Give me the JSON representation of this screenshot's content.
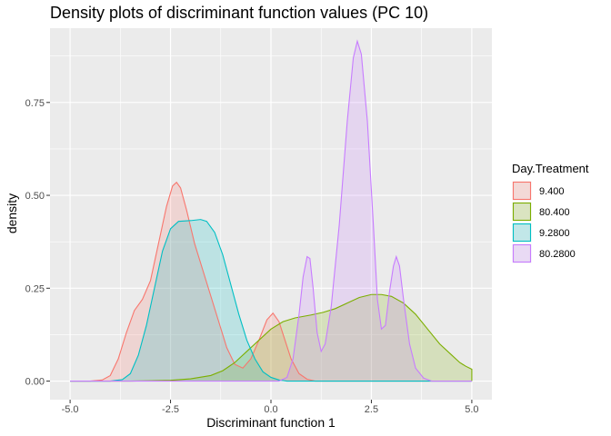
{
  "chart_data": {
    "type": "area",
    "title": "Density plots of discriminant function values (PC 10)",
    "xlabel": "Discriminant function 1",
    "ylabel": "density",
    "xlim": [
      -5.5,
      5.5
    ],
    "ylim": [
      -0.05,
      0.95
    ],
    "x_ticks": [
      -5.0,
      -2.5,
      0.0,
      2.5,
      5.0
    ],
    "x_tick_labels": [
      "-5.0",
      "-2.5",
      "0.0",
      "2.5",
      "5.0"
    ],
    "y_ticks": [
      0.0,
      0.25,
      0.5,
      0.75
    ],
    "y_tick_labels": [
      "0.00",
      "0.25",
      "0.50",
      "0.75"
    ],
    "grid": true,
    "legend": {
      "title": "Day.Treatment",
      "position": "right"
    },
    "series": [
      {
        "name": "9.400",
        "color": "#F8766D",
        "points": [
          [
            -5.0,
            0
          ],
          [
            -4.5,
            0
          ],
          [
            -4.2,
            0.003
          ],
          [
            -4.0,
            0.015
          ],
          [
            -3.8,
            0.06
          ],
          [
            -3.6,
            0.13
          ],
          [
            -3.4,
            0.19
          ],
          [
            -3.2,
            0.22
          ],
          [
            -3.0,
            0.27
          ],
          [
            -2.8,
            0.37
          ],
          [
            -2.6,
            0.47
          ],
          [
            -2.45,
            0.525
          ],
          [
            -2.35,
            0.535
          ],
          [
            -2.25,
            0.52
          ],
          [
            -2.1,
            0.46
          ],
          [
            -1.9,
            0.37
          ],
          [
            -1.7,
            0.3
          ],
          [
            -1.5,
            0.23
          ],
          [
            -1.3,
            0.16
          ],
          [
            -1.1,
            0.09
          ],
          [
            -0.9,
            0.045
          ],
          [
            -0.7,
            0.035
          ],
          [
            -0.5,
            0.06
          ],
          [
            -0.3,
            0.11
          ],
          [
            -0.1,
            0.165
          ],
          [
            0.05,
            0.183
          ],
          [
            0.2,
            0.16
          ],
          [
            0.35,
            0.11
          ],
          [
            0.5,
            0.06
          ],
          [
            0.7,
            0.02
          ],
          [
            0.9,
            0.005
          ],
          [
            1.1,
            0
          ],
          [
            5.0,
            0
          ]
        ]
      },
      {
        "name": "80.400",
        "color": "#7CAE00",
        "points": [
          [
            -5.0,
            0
          ],
          [
            -3.5,
            0
          ],
          [
            -3.0,
            0.001
          ],
          [
            -2.5,
            0.002
          ],
          [
            -2.0,
            0.006
          ],
          [
            -1.5,
            0.015
          ],
          [
            -1.2,
            0.028
          ],
          [
            -0.9,
            0.05
          ],
          [
            -0.6,
            0.08
          ],
          [
            -0.3,
            0.11
          ],
          [
            0.0,
            0.14
          ],
          [
            0.3,
            0.16
          ],
          [
            0.6,
            0.17
          ],
          [
            1.0,
            0.178
          ],
          [
            1.3,
            0.185
          ],
          [
            1.6,
            0.195
          ],
          [
            1.9,
            0.21
          ],
          [
            2.2,
            0.225
          ],
          [
            2.5,
            0.233
          ],
          [
            2.75,
            0.233
          ],
          [
            3.0,
            0.228
          ],
          [
            3.3,
            0.21
          ],
          [
            3.6,
            0.18
          ],
          [
            3.9,
            0.14
          ],
          [
            4.2,
            0.1
          ],
          [
            4.5,
            0.07
          ],
          [
            4.7,
            0.05
          ],
          [
            4.85,
            0.04
          ],
          [
            5.0,
            0.032
          ]
        ]
      },
      {
        "name": "9.2800",
        "color": "#00BFC4",
        "points": [
          [
            -5.0,
            0
          ],
          [
            -4.0,
            0
          ],
          [
            -3.7,
            0.004
          ],
          [
            -3.5,
            0.02
          ],
          [
            -3.3,
            0.07
          ],
          [
            -3.1,
            0.15
          ],
          [
            -2.9,
            0.25
          ],
          [
            -2.7,
            0.35
          ],
          [
            -2.5,
            0.41
          ],
          [
            -2.3,
            0.43
          ],
          [
            -2.0,
            0.432
          ],
          [
            -1.75,
            0.435
          ],
          [
            -1.6,
            0.43
          ],
          [
            -1.4,
            0.4
          ],
          [
            -1.2,
            0.34
          ],
          [
            -1.0,
            0.26
          ],
          [
            -0.8,
            0.18
          ],
          [
            -0.6,
            0.11
          ],
          [
            -0.4,
            0.06
          ],
          [
            -0.2,
            0.025
          ],
          [
            0.0,
            0.01
          ],
          [
            0.2,
            0.003
          ],
          [
            0.4,
            0
          ],
          [
            5.0,
            0
          ]
        ]
      },
      {
        "name": "80.2800",
        "color": "#C77CFF",
        "points": [
          [
            -5.0,
            0
          ],
          [
            0.2,
            0
          ],
          [
            0.4,
            0.01
          ],
          [
            0.55,
            0.06
          ],
          [
            0.7,
            0.18
          ],
          [
            0.8,
            0.28
          ],
          [
            0.9,
            0.335
          ],
          [
            0.97,
            0.33
          ],
          [
            1.05,
            0.25
          ],
          [
            1.15,
            0.13
          ],
          [
            1.25,
            0.08
          ],
          [
            1.35,
            0.1
          ],
          [
            1.5,
            0.2
          ],
          [
            1.7,
            0.42
          ],
          [
            1.9,
            0.7
          ],
          [
            2.05,
            0.87
          ],
          [
            2.15,
            0.915
          ],
          [
            2.25,
            0.88
          ],
          [
            2.4,
            0.7
          ],
          [
            2.55,
            0.42
          ],
          [
            2.65,
            0.22
          ],
          [
            2.75,
            0.14
          ],
          [
            2.85,
            0.15
          ],
          [
            2.95,
            0.24
          ],
          [
            3.05,
            0.31
          ],
          [
            3.12,
            0.335
          ],
          [
            3.2,
            0.31
          ],
          [
            3.3,
            0.22
          ],
          [
            3.45,
            0.1
          ],
          [
            3.6,
            0.035
          ],
          [
            3.8,
            0.008
          ],
          [
            4.0,
            0
          ],
          [
            5.0,
            0
          ]
        ]
      }
    ]
  }
}
